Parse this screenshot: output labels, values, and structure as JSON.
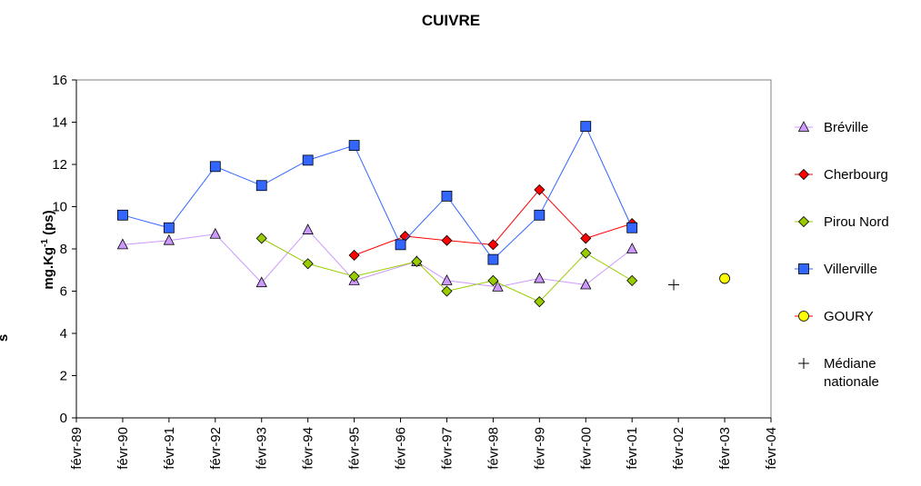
{
  "chart_data": {
    "type": "line",
    "title": "CUIVRE",
    "ylabel_main": "mg.Kg",
    "ylabel_sup": "-1",
    "ylabel_tail": " (ps)",
    "stray_label": "s",
    "ylim": [
      0,
      16
    ],
    "yticks": [
      0,
      2,
      4,
      6,
      8,
      10,
      12,
      14,
      16
    ],
    "x_categories": [
      "févr-89",
      "févr-90",
      "févr-91",
      "févr-92",
      "févr-93",
      "févr-94",
      "févr-95",
      "févr-96",
      "févr-97",
      "févr-98",
      "févr-99",
      "févr-00",
      "févr-01",
      "févr-02",
      "févr-03",
      "févr-04"
    ],
    "grid": false,
    "legend_position": "right",
    "series": [
      {
        "name": "Bréville",
        "color": "#CC99FF",
        "line_color": "#CC99FF",
        "marker": "triangle",
        "points": [
          [
            1.0,
            8.2
          ],
          [
            2.0,
            8.4
          ],
          [
            3.0,
            8.7
          ],
          [
            4.0,
            6.4
          ],
          [
            5.0,
            8.9
          ],
          [
            6.0,
            6.5
          ],
          [
            7.35,
            7.4
          ],
          [
            8.0,
            6.5
          ],
          [
            9.1,
            6.2
          ],
          [
            10.0,
            6.6
          ],
          [
            11.0,
            6.3
          ],
          [
            12.0,
            8.0
          ]
        ]
      },
      {
        "name": "Cherbourg",
        "color": "#FF0000",
        "line_color": "#FF0000",
        "marker": "diamond",
        "points": [
          [
            6.0,
            7.7
          ],
          [
            7.1,
            8.6
          ],
          [
            8.0,
            8.4
          ],
          [
            9.0,
            8.2
          ],
          [
            10.0,
            10.8
          ],
          [
            11.0,
            8.5
          ],
          [
            12.0,
            9.2
          ]
        ]
      },
      {
        "name": "Pirou Nord",
        "color": "#99CC00",
        "line_color": "#99CC00",
        "marker": "diamond",
        "points": [
          [
            4.0,
            8.5
          ],
          [
            5.0,
            7.3
          ],
          [
            6.0,
            6.7
          ],
          [
            7.35,
            7.4
          ],
          [
            8.0,
            6.0
          ],
          [
            9.0,
            6.5
          ],
          [
            10.0,
            5.5
          ],
          [
            11.0,
            7.8
          ],
          [
            12.0,
            6.5
          ]
        ]
      },
      {
        "name": "Villerville",
        "color": "#3366FF",
        "line_color": "#3366FF",
        "marker": "square",
        "points": [
          [
            1.0,
            9.6
          ],
          [
            2.0,
            9.0
          ],
          [
            3.0,
            11.9
          ],
          [
            4.0,
            11.0
          ],
          [
            5.0,
            12.2
          ],
          [
            6.0,
            12.9
          ],
          [
            7.0,
            8.2
          ],
          [
            8.0,
            10.5
          ],
          [
            9.0,
            7.5
          ],
          [
            10.0,
            9.6
          ],
          [
            11.0,
            13.8
          ],
          [
            12.0,
            9.0
          ]
        ]
      },
      {
        "name": "GOURY",
        "color": "#FFFF00",
        "line_color": "#FF0000",
        "marker": "circle",
        "points": [
          [
            14.0,
            6.6
          ]
        ]
      },
      {
        "name": "Médiane nationale",
        "name_lines": [
          "Médiane",
          "nationale"
        ],
        "color": "#000000",
        "line_color": "#000000",
        "marker": "plus",
        "points": [
          [
            12.9,
            6.3
          ]
        ]
      }
    ]
  }
}
